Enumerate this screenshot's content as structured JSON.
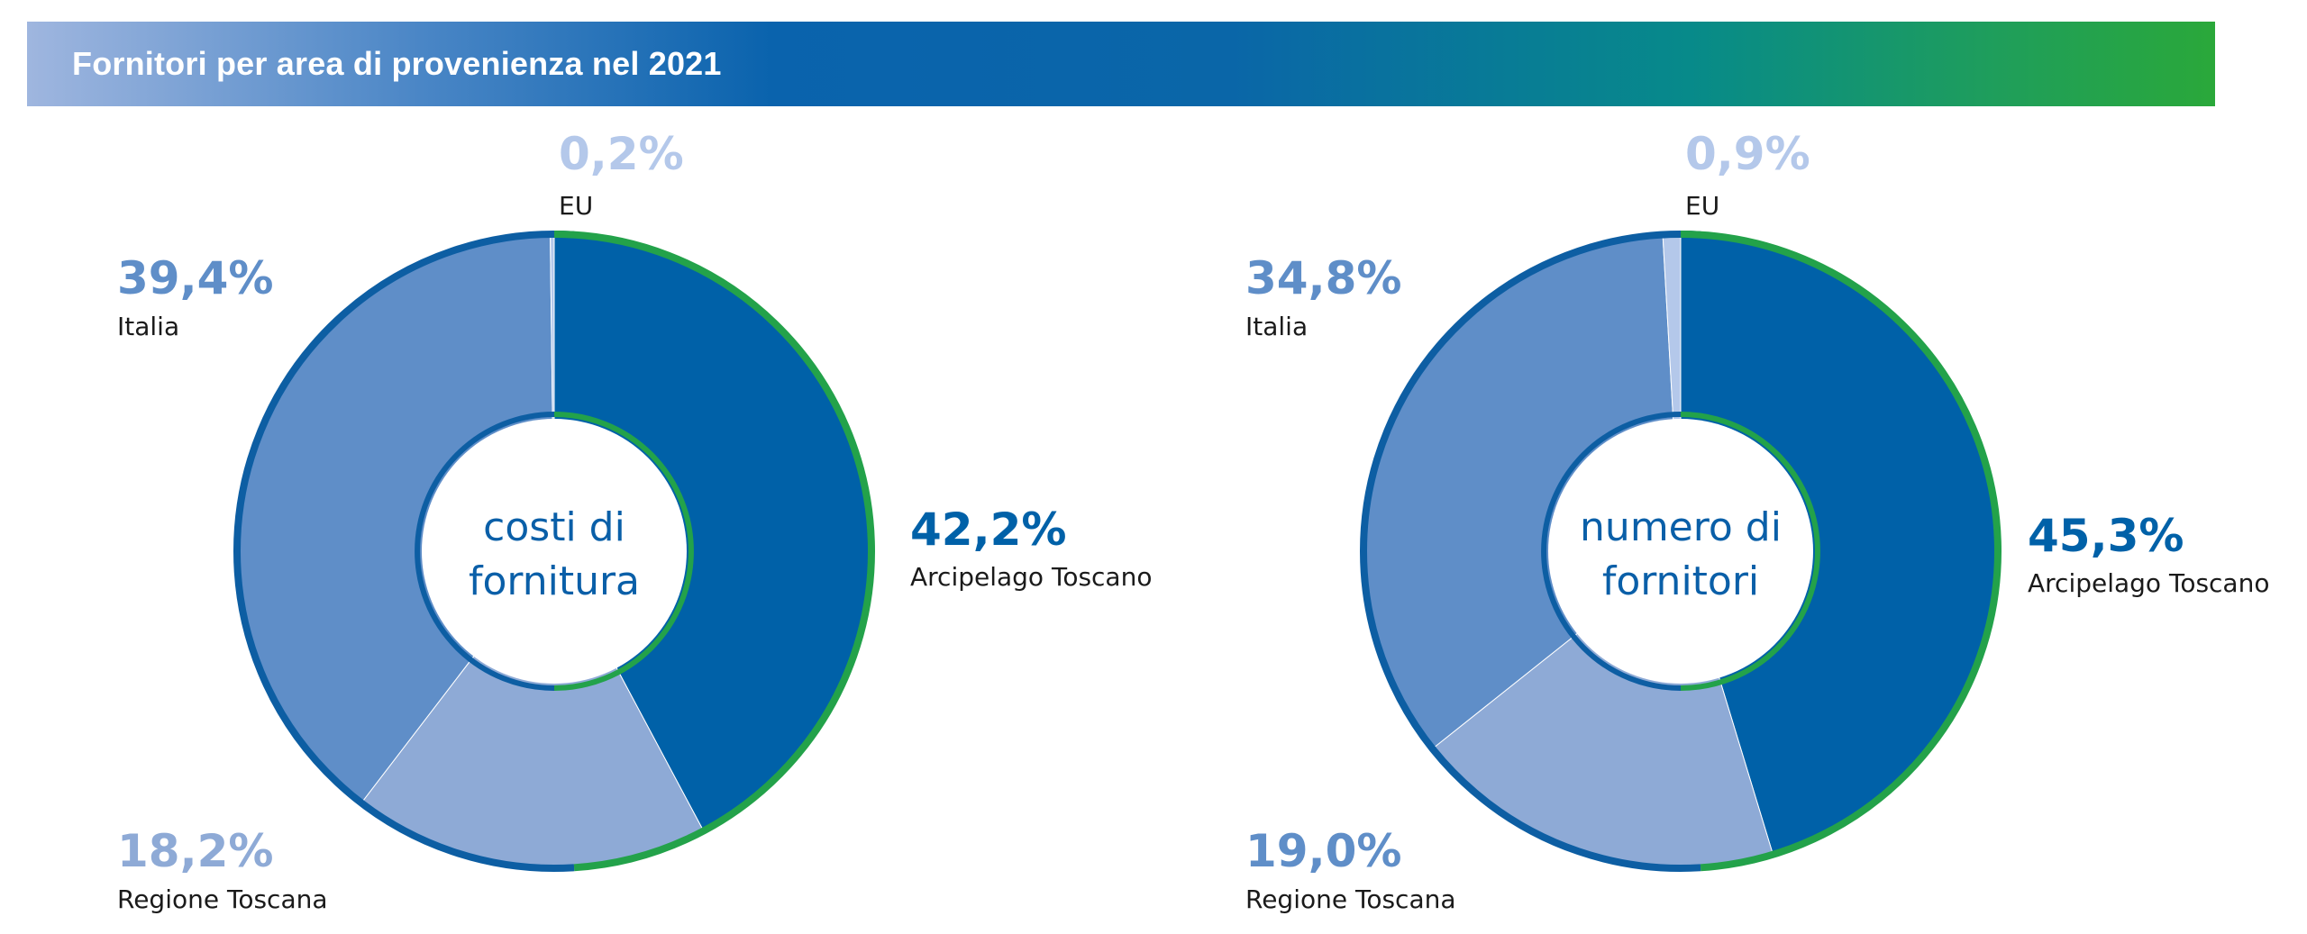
{
  "header": {
    "title": "Fornitori per area di provenienza nel 2021"
  },
  "colors": {
    "arcipelago": "#0061a8",
    "regione": "#8eaad6",
    "italia": "#5f8ec8",
    "eu": "#b4c8ea",
    "ring_outer_blue": "#0d5ea3",
    "ring_green": "#23a24a"
  },
  "chart_data": [
    {
      "type": "pie",
      "center_label": [
        "costi di",
        "fornitura"
      ],
      "slices": [
        {
          "name": "Arcipelago Toscano",
          "value": 42.2,
          "label": "42,2%"
        },
        {
          "name": "Regione Toscana",
          "value": 18.2,
          "label": "18,2%"
        },
        {
          "name": "Italia",
          "value": 39.4,
          "label": "39,4%"
        },
        {
          "name": "EU",
          "value": 0.2,
          "label": "0,2%"
        }
      ]
    },
    {
      "type": "pie",
      "center_label": [
        "numero di",
        "fornitori"
      ],
      "slices": [
        {
          "name": "Arcipelago Toscano",
          "value": 45.3,
          "label": "45,3%"
        },
        {
          "name": "Regione Toscana",
          "value": 19.0,
          "label": "19,0%"
        },
        {
          "name": "Italia",
          "value": 34.8,
          "label": "34,8%"
        },
        {
          "name": "EU",
          "value": 0.9,
          "label": "0,9%"
        }
      ]
    }
  ]
}
